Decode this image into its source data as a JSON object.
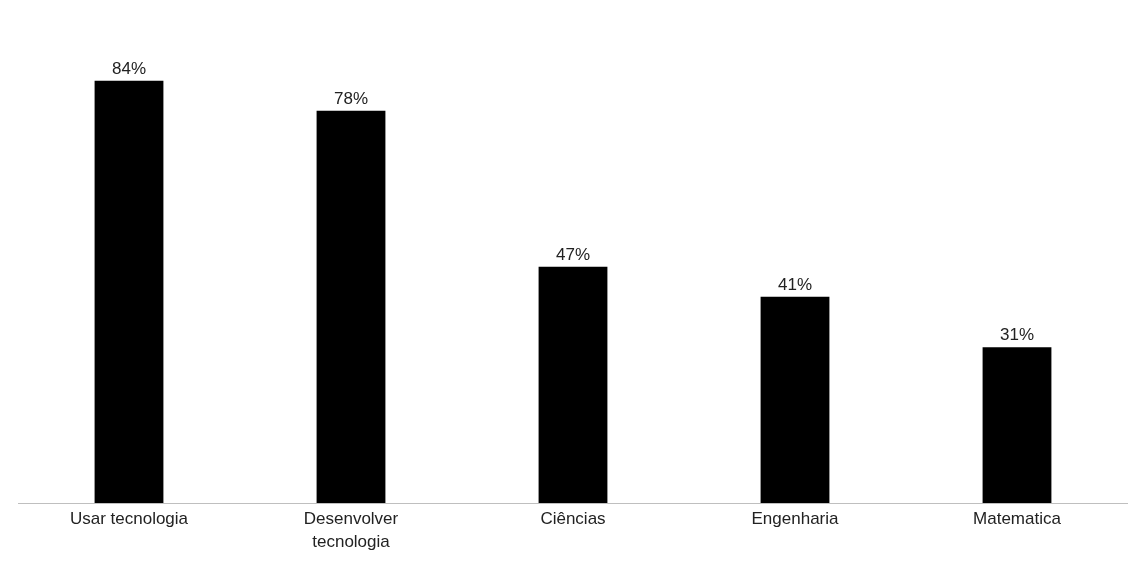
{
  "chart_data": {
    "type": "bar",
    "categories": [
      "Usar tecnologia",
      "Desenvolver tecnologia",
      "Ciências",
      "Engenharia",
      "Matematica"
    ],
    "values": [
      84,
      78,
      47,
      41,
      31
    ],
    "value_labels": [
      "84%",
      "78%",
      "47%",
      "41%",
      "31%"
    ],
    "color": "#000000",
    "legend": false
  }
}
